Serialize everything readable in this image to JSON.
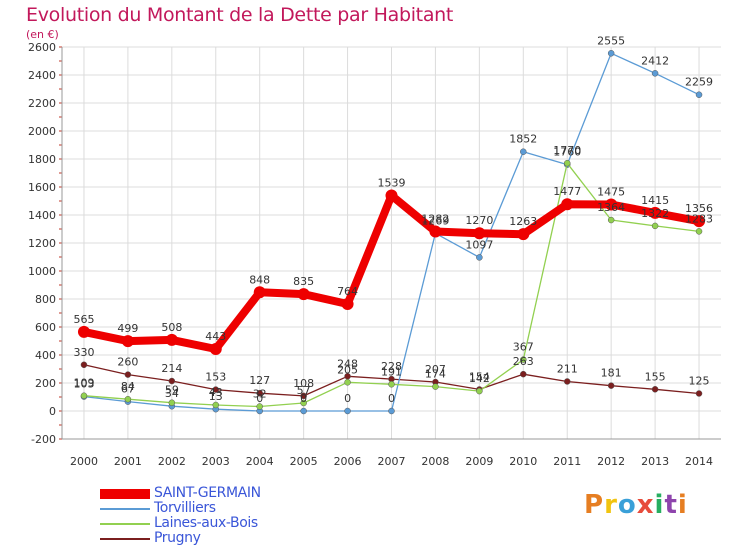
{
  "chart_data": {
    "type": "line",
    "title": "Evolution du Montant de la Dette par Habitant",
    "subtitle": "(en €)",
    "x": [
      "2000",
      "2001",
      "2002",
      "2003",
      "2004",
      "2005",
      "2006",
      "2007",
      "2008",
      "2009",
      "2010",
      "2011",
      "2012",
      "2013",
      "2014"
    ],
    "ylim": [
      -200,
      2600
    ],
    "yticks": [
      -200,
      0,
      200,
      400,
      600,
      800,
      1000,
      1200,
      1400,
      1600,
      1800,
      2000,
      2200,
      2400,
      2600
    ],
    "grid": true,
    "legend_position": "bottom-left",
    "series": [
      {
        "name": "SAINT-GERMAIN",
        "color": "#ee0000",
        "values": [
          565,
          499,
          508,
          443,
          848,
          835,
          764,
          1539,
          1282,
          1270,
          1263,
          1477,
          1475,
          1415,
          1356
        ],
        "labels": [
          "565",
          "499",
          "508",
          "443",
          "848",
          "835",
          "764",
          "1539",
          "1282",
          "1270",
          "1263",
          "1477",
          "1475",
          "1415",
          "1356"
        ]
      },
      {
        "name": "Torvilliers",
        "color": "#5b9bd5",
        "values": [
          103,
          67,
          34,
          13,
          0,
          0,
          0,
          0,
          1269,
          1097,
          1852,
          1760,
          2555,
          2412,
          2259
        ],
        "labels": [
          "103",
          "67",
          "34",
          "13",
          "0",
          "0",
          "0",
          "0",
          "1269",
          "1097",
          "1852",
          "1760",
          "2555",
          "2412",
          "2259"
        ]
      },
      {
        "name": "Laines-aux-Bois",
        "color": "#92d050",
        "values": [
          109,
          84,
          59,
          43,
          32,
          57,
          205,
          191,
          174,
          142,
          367,
          1770,
          1364,
          1322,
          1283
        ],
        "labels": [
          "109",
          "84",
          "59",
          "43",
          "32",
          "57",
          "205",
          "191",
          "174",
          "142",
          "367",
          "1770",
          "1364",
          "1322",
          "1283"
        ]
      },
      {
        "name": "Prugny",
        "color": "#7b1f1f",
        "values": [
          330,
          260,
          214,
          153,
          127,
          108,
          248,
          228,
          207,
          154,
          263,
          211,
          181,
          155,
          125
        ],
        "labels": [
          "330",
          "260",
          "214",
          "153",
          "127",
          "108",
          "248",
          "228",
          "207",
          "154",
          "263",
          "211",
          "181",
          "155",
          "125"
        ]
      }
    ]
  },
  "logo": {
    "text": "Proxiti"
  }
}
